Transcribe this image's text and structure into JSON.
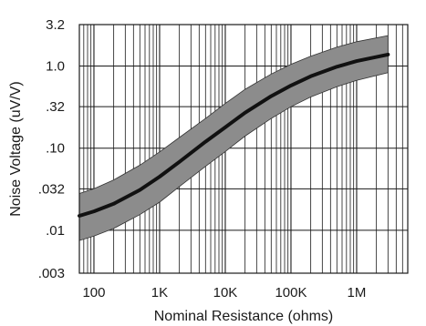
{
  "chart_data": {
    "type": "line",
    "xlabel": "Nominal Resistance (ohms)",
    "ylabel": "Noise Voltage (uV/V)",
    "x_scale": "log",
    "y_scale": "log",
    "xlim": [
      60,
      6000000
    ],
    "ylim": [
      0.003,
      3.2
    ],
    "x_ticks": [
      {
        "value": 100,
        "label": "100"
      },
      {
        "value": 1000,
        "label": "1K"
      },
      {
        "value": 10000,
        "label": "10K"
      },
      {
        "value": 100000,
        "label": "100K"
      },
      {
        "value": 1000000,
        "label": "1M"
      }
    ],
    "y_ticks": [
      {
        "value": 0.003,
        "label": ".003"
      },
      {
        "value": 0.01,
        "label": ".01"
      },
      {
        "value": 0.032,
        "label": ".032"
      },
      {
        "value": 0.1,
        "label": ".10"
      },
      {
        "value": 0.32,
        "label": ".32"
      },
      {
        "value": 1.0,
        "label": "1.0"
      },
      {
        "value": 3.2,
        "label": "3.2"
      }
    ],
    "grid": true,
    "band_color": "#8c8c8c",
    "line_color": "#111111",
    "series": [
      {
        "role": "typical",
        "x": [
          60,
          100,
          200,
          500,
          1000,
          2000,
          5000,
          10000,
          20000,
          50000,
          100000,
          200000,
          500000,
          1000000,
          3000000
        ],
        "y": [
          0.015,
          0.017,
          0.021,
          0.031,
          0.045,
          0.068,
          0.12,
          0.18,
          0.27,
          0.43,
          0.58,
          0.75,
          0.98,
          1.15,
          1.38
        ]
      },
      {
        "role": "upper",
        "x": [
          60,
          100,
          200,
          500,
          1000,
          2000,
          5000,
          10000,
          20000,
          50000,
          100000,
          200000,
          500000,
          1000000,
          3000000
        ],
        "y": [
          0.028,
          0.032,
          0.041,
          0.062,
          0.09,
          0.135,
          0.23,
          0.35,
          0.52,
          0.8,
          1.05,
          1.32,
          1.7,
          1.98,
          2.35
        ]
      },
      {
        "role": "lower",
        "x": [
          60,
          100,
          200,
          500,
          1000,
          2000,
          5000,
          10000,
          20000,
          50000,
          100000,
          200000,
          500000,
          1000000,
          3000000
        ],
        "y": [
          0.0075,
          0.0085,
          0.0105,
          0.0155,
          0.022,
          0.034,
          0.06,
          0.091,
          0.14,
          0.23,
          0.32,
          0.42,
          0.56,
          0.67,
          0.83
        ]
      }
    ]
  }
}
